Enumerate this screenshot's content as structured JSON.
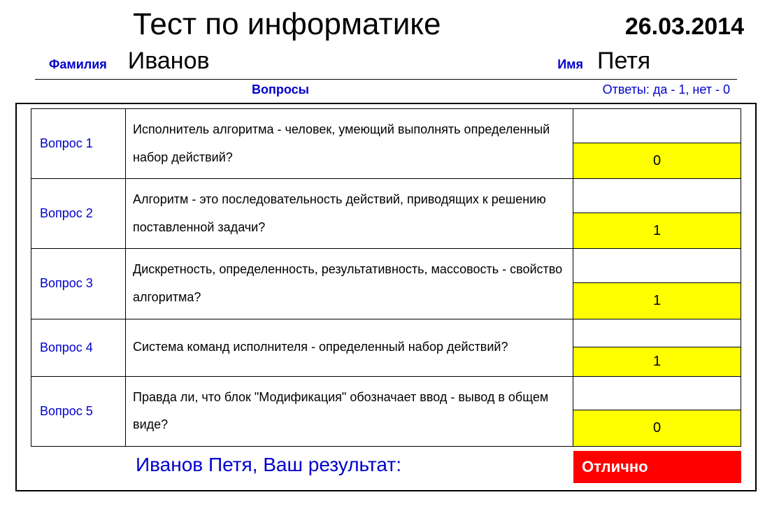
{
  "header": {
    "title": "Тест по информатике",
    "date": "26.03.2014",
    "surname_label": "Фамилия",
    "surname": "Иванов",
    "firstname_label": "Имя",
    "firstname": "Петя"
  },
  "subheader": {
    "questions_label": "Вопросы",
    "answers_label": "Ответы: да - 1, нет - 0"
  },
  "questions": [
    {
      "label": "Вопрос 1",
      "text": "Исполнитель алгоритма - человек, умеющий выполнять определенный набор действий?",
      "answer": "0"
    },
    {
      "label": "Вопрос 2",
      "text": "Алгоритм - это последовательность действий, приводящих к решению поставленной задачи?",
      "answer": "1"
    },
    {
      "label": "Вопрос 3",
      "text": "Дискретность, определенность, результативность, массовость - свойство алгоритма?",
      "answer": "1"
    },
    {
      "label": "Вопрос 4",
      "text": "Система команд исполнителя - определенный набор действий?",
      "answer": "1"
    },
    {
      "label": "Вопрос 5",
      "text": "Правда ли, что блок \"Модификация\" обозначает ввод - вывод в общем виде?",
      "answer": "0"
    }
  ],
  "result": {
    "text": "Иванов Петя, Ваш результат:",
    "grade": "Отлично"
  },
  "styling": {
    "answer_highlight_color": "#ffff00",
    "grade_background_color": "#ff0000",
    "grade_text_color": "#ffffff",
    "label_color": "#0000cc",
    "text_color": "#000000",
    "border_color": "#000000",
    "background_color": "#ffffff",
    "title_fontsize": 44,
    "date_fontsize": 34,
    "name_fontsize": 34,
    "label_fontsize": 18,
    "body_fontsize": 18,
    "result_fontsize": 28,
    "grade_fontsize": 22
  }
}
